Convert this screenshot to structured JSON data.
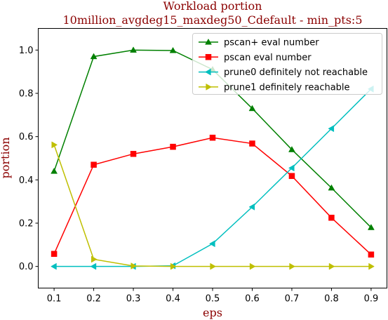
{
  "chart_data": {
    "type": "line",
    "title": "Workload portion",
    "subtitle": "10million_avgdeg15_maxdeg50_Cdefault - min_pts:5",
    "xlabel": "eps",
    "ylabel": "portion",
    "x": [
      0.1,
      0.2,
      0.3,
      0.4,
      0.5,
      0.6,
      0.7,
      0.8,
      0.9
    ],
    "xticks": [
      "0.1",
      "0.2",
      "0.3",
      "0.4",
      "0.5",
      "0.6",
      "0.7",
      "0.8",
      "0.9"
    ],
    "yticks": [
      "0.0",
      "0.2",
      "0.4",
      "0.6",
      "0.8",
      "1.0"
    ],
    "xlim": [
      0.06,
      0.94
    ],
    "ylim": [
      -0.1,
      1.1
    ],
    "grid": false,
    "legend_position": "top-right",
    "series": [
      {
        "name": "pscan+ eval number",
        "color": "#008000",
        "marker": "triangle-up",
        "values": [
          0.44,
          0.97,
          1.0,
          0.998,
          0.91,
          0.73,
          0.54,
          0.363,
          0.18
        ]
      },
      {
        "name": "pscan eval number",
        "color": "#ff0000",
        "marker": "square",
        "values": [
          0.058,
          0.47,
          0.52,
          0.553,
          0.595,
          0.568,
          0.418,
          0.225,
          0.055
        ]
      },
      {
        "name": "prune0 definitely not reachable",
        "color": "#00bfbf",
        "marker": "triangle-left",
        "values": [
          0.0,
          0.0,
          0.0,
          0.003,
          0.105,
          0.275,
          0.455,
          0.637,
          0.82
        ]
      },
      {
        "name": "prune1 definitely reachable",
        "color": "#bfbf00",
        "marker": "triangle-right",
        "values": [
          0.562,
          0.033,
          0.002,
          0.0,
          0.0,
          0.0,
          0.0,
          0.0,
          0.0
        ]
      }
    ]
  }
}
